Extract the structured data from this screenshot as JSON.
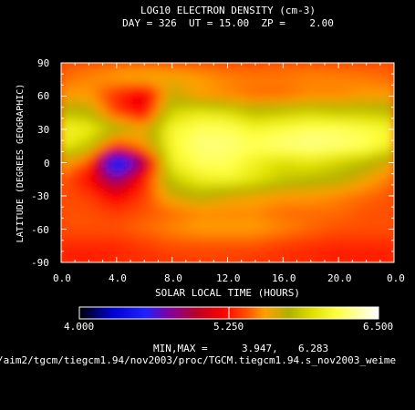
{
  "chart_data": {
    "type": "heatmap",
    "title": "LOG10 ELECTRON DENSITY (cm-3)",
    "subtitle": "DAY = 326  UT = 15.00  ZP =    2.00",
    "xlabel": "SOLAR LOCAL TIME (HOURS)",
    "ylabel": "LATITUDE (DEGREES GEOGRAPHIC)",
    "xlim": [
      0,
      24
    ],
    "ylim": [
      -90,
      90
    ],
    "x_ticks": [
      "0.0",
      "4.0",
      "8.0",
      "12.0",
      "16.0",
      "20.0",
      "0.0"
    ],
    "y_ticks": [
      "90",
      "60",
      "30",
      "0",
      "-30",
      "-60",
      "-90"
    ],
    "colorbar": {
      "min_label": "4.000",
      "mid_label": "5.250",
      "max_label": "6.500",
      "min": 4.0,
      "max": 6.5
    },
    "minmax_label": "MIN,MAX =",
    "min_value": "3.947,",
    "max_value": "6.283",
    "file_path": "/aim2/tgcm/tiegcm1.94/nov2003/proc/TGCM.tiegcm1.94.s_nov2003_weime",
    "lat_rows": [
      90,
      75,
      60,
      45,
      30,
      15,
      0,
      -15,
      -30,
      -45,
      -60,
      -75,
      -90
    ],
    "lt_cols": [
      0,
      2,
      4,
      6,
      8,
      10,
      12,
      14,
      16,
      18,
      20,
      22,
      24
    ],
    "values": [
      [
        5.4,
        5.42,
        5.45,
        5.45,
        5.42,
        5.42,
        5.4,
        5.4,
        5.42,
        5.42,
        5.4,
        5.4,
        5.4
      ],
      [
        5.45,
        5.5,
        5.55,
        5.6,
        5.6,
        5.55,
        5.5,
        5.48,
        5.48,
        5.5,
        5.5,
        5.48,
        5.45
      ],
      [
        5.55,
        5.55,
        5.3,
        5.1,
        5.7,
        5.55,
        5.5,
        5.45,
        5.45,
        5.5,
        5.5,
        5.55,
        5.55
      ],
      [
        5.8,
        5.75,
        5.35,
        5.2,
        5.9,
        6.0,
        5.95,
        5.8,
        5.85,
        5.9,
        5.85,
        5.85,
        5.8
      ],
      [
        6.1,
        6.05,
        5.8,
        5.6,
        6.1,
        6.2,
        6.2,
        6.1,
        6.15,
        6.2,
        6.2,
        6.15,
        6.1
      ],
      [
        6.05,
        5.85,
        5.3,
        5.55,
        6.1,
        6.25,
        6.25,
        6.2,
        6.25,
        6.28,
        6.25,
        6.2,
        6.05
      ],
      [
        5.6,
        5.4,
        4.2,
        4.9,
        6.05,
        6.2,
        6.2,
        6.05,
        5.95,
        6.0,
        5.9,
        5.8,
        5.6
      ],
      [
        5.45,
        5.2,
        4.8,
        5.25,
        5.85,
        6.05,
        6.1,
        6.0,
        5.85,
        5.8,
        5.75,
        5.6,
        5.45
      ],
      [
        5.4,
        5.35,
        5.15,
        5.35,
        5.65,
        5.75,
        5.65,
        5.6,
        5.55,
        5.55,
        5.5,
        5.45,
        5.4
      ],
      [
        5.4,
        5.4,
        5.35,
        5.4,
        5.45,
        5.5,
        5.5,
        5.5,
        5.45,
        5.45,
        5.45,
        5.4,
        5.4
      ],
      [
        5.4,
        5.4,
        5.4,
        5.45,
        5.5,
        5.55,
        5.55,
        5.55,
        5.5,
        5.45,
        5.4,
        5.4,
        5.4
      ],
      [
        5.3,
        5.3,
        5.3,
        5.35,
        5.4,
        5.4,
        5.4,
        5.4,
        5.35,
        5.32,
        5.3,
        5.3,
        5.3
      ],
      [
        5.25,
        5.25,
        5.28,
        5.3,
        5.32,
        5.35,
        5.35,
        5.32,
        5.3,
        5.28,
        5.25,
        5.25,
        5.25
      ]
    ]
  }
}
